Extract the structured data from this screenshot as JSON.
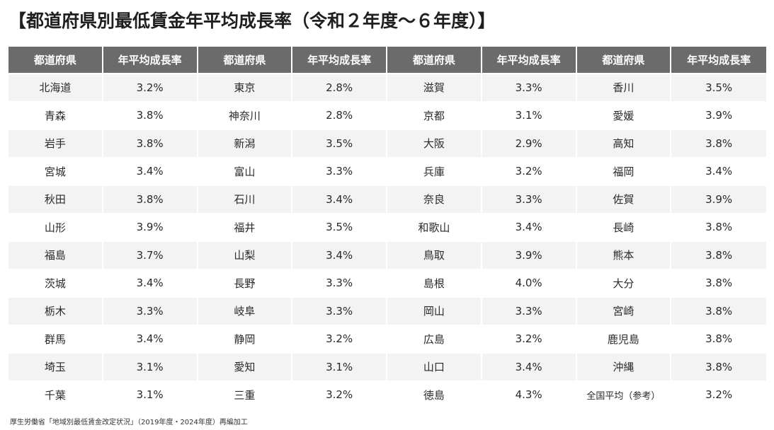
{
  "title": "【都道府県別最低賃金年平均成長率（令和２年度～６年度）】",
  "headers": [
    "都道府県",
    "年平均成長率",
    "都道府県",
    "年平均成長率",
    "都道府県",
    "年平均成長率",
    "都道府県",
    "年平均成長率"
  ],
  "rows": [
    [
      "北海道",
      "3.2%",
      "東京",
      "2.8%",
      "滋賀",
      "3.3%",
      "香川",
      "3.5%"
    ],
    [
      "青森",
      "3.8%",
      "神奈川",
      "2.8%",
      "京都",
      "3.1%",
      "愛媛",
      "3.9%"
    ],
    [
      "岩手",
      "3.8%",
      "新潟",
      "3.5%",
      "大阪",
      "2.9%",
      "高知",
      "3.8%"
    ],
    [
      "宮城",
      "3.4%",
      "富山",
      "3.3%",
      "兵庫",
      "3.2%",
      "福岡",
      "3.4%"
    ],
    [
      "秋田",
      "3.8%",
      "石川",
      "3.4%",
      "奈良",
      "3.3%",
      "佐賀",
      "3.9%"
    ],
    [
      "山形",
      "3.9%",
      "福井",
      "3.5%",
      "和歌山",
      "3.4%",
      "長崎",
      "3.8%"
    ],
    [
      "福島",
      "3.7%",
      "山梨",
      "3.4%",
      "鳥取",
      "3.9%",
      "熊本",
      "3.8%"
    ],
    [
      "茨城",
      "3.4%",
      "長野",
      "3.3%",
      "島根",
      "4.0%",
      "大分",
      "3.8%"
    ],
    [
      "栃木",
      "3.3%",
      "岐阜",
      "3.3%",
      "岡山",
      "3.3%",
      "宮崎",
      "3.8%"
    ],
    [
      "群馬",
      "3.4%",
      "静岡",
      "3.2%",
      "広島",
      "3.2%",
      "鹿児島",
      "3.8%"
    ],
    [
      "埼玉",
      "3.1%",
      "愛知",
      "3.1%",
      "山口",
      "3.4%",
      "沖縄",
      "3.8%"
    ],
    [
      "千葉",
      "3.1%",
      "三重",
      "3.2%",
      "徳島",
      "4.3%",
      "全国平均（参考）",
      "3.2%"
    ]
  ],
  "source": "厚生労働省「地域別最低賃金改定状況」（2019年度・2024年度）再編加工",
  "colors": {
    "header_bg": "#6b6b6b",
    "header_text": "#ffffff",
    "row_alt_bg": "#f3f3f3"
  }
}
